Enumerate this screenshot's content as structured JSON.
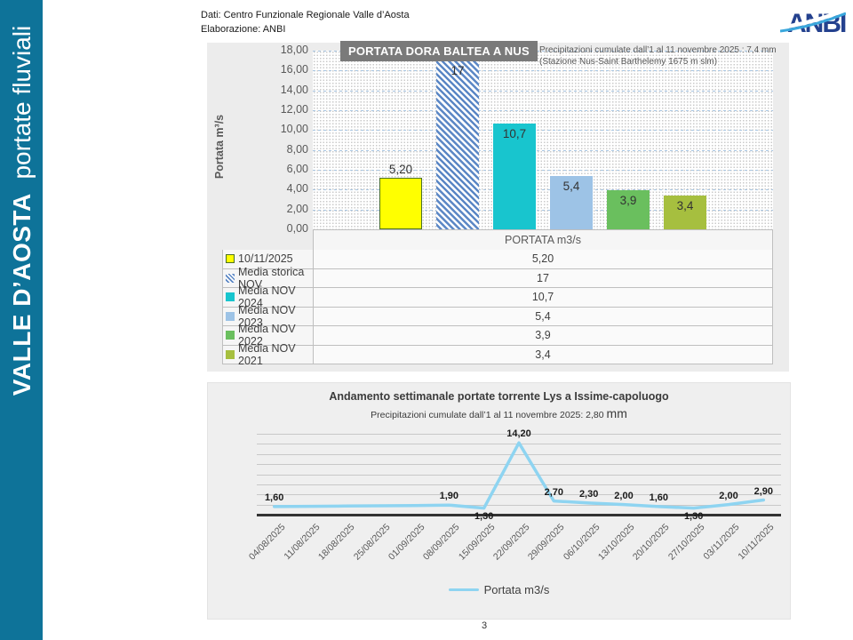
{
  "sidebar": {
    "title_bold": "VALLE D’AOSTA",
    "title_regular": "portate fluviali",
    "bg_color": "#0e7399"
  },
  "header": {
    "line1": "Dati: Centro Funzionale Regionale Valle d’Aosta",
    "line2": "Elaborazione: ANBI"
  },
  "logo": {
    "text": "ANBI",
    "dark_blue": "#24418e",
    "light_blue": "#3aa7dc"
  },
  "footer": {
    "page_number": "3"
  },
  "chart_data": [
    {
      "type": "bar",
      "title": "PORTATA DORA BALTEA A NUS",
      "note_line1": "Precipitazioni cumulate dall’1 al 11 novembre 2025 : 7,4 mm",
      "note_line2": "(Stazione Nus-Saint Barthelemy 1675 m slm)",
      "ylabel": "Portata m³/s",
      "ylim": [
        0,
        18
      ],
      "ytick_step": 2,
      "yticks": [
        "18,00",
        "16,00",
        "14,00",
        "12,00",
        "10,00",
        "8,00",
        "6,00",
        "4,00",
        "2,00",
        "0,00"
      ],
      "categories": [
        "PORTATA m3/s"
      ],
      "category_header": "PORTATA m3/s",
      "grid": true,
      "legend_position": "table-below",
      "gridline_color": "#a9c6e2",
      "series": [
        {
          "name": "10/11/2025",
          "value": 5.2,
          "label": "5,20",
          "color": "#ffff00",
          "border": "#4a7028",
          "pattern": "solid"
        },
        {
          "name": "Media storica NOV",
          "value": 17,
          "label": "17",
          "color": "#5b87c5",
          "pattern": "diagonal-stripes"
        },
        {
          "name": "Media NOV 2024",
          "value": 10.7,
          "label": "10,7",
          "color": "#18c5ce",
          "pattern": "solid"
        },
        {
          "name": "Media NOV 2023",
          "value": 5.4,
          "label": "5,4",
          "color": "#9dc3e6",
          "pattern": "solid"
        },
        {
          "name": "Media NOV 2022",
          "value": 3.9,
          "label": "3,9",
          "color": "#6abf5e",
          "pattern": "solid"
        },
        {
          "name": "Media NOV 2021",
          "value": 3.4,
          "label": "3,4",
          "color": "#a6bf3f",
          "pattern": "solid"
        }
      ]
    },
    {
      "type": "line",
      "title": "Andamento settimanale portate torrente Lys a Issime-capoluogo",
      "subtitle": "Precipitazioni cumulate dall’1 al 11 novembre 2025: 2,80",
      "subtitle_unit": "mm",
      "x": [
        "04/08/2025",
        "11/08/2025",
        "18/08/2025",
        "25/08/2025",
        "01/09/2025",
        "08/09/2025",
        "15/09/2025",
        "22/09/2025",
        "29/09/2025",
        "06/10/2025",
        "13/10/2025",
        "20/10/2025",
        "27/10/2025",
        "03/11/2025",
        "10/11/2025"
      ],
      "values": [
        1.6,
        1.65,
        1.7,
        1.75,
        1.8,
        1.9,
        1.3,
        14.2,
        2.7,
        2.3,
        2.0,
        1.6,
        1.3,
        2.0,
        2.9
      ],
      "point_labels": [
        "1,60",
        "",
        "",
        "",
        "",
        "1,90",
        "1,30",
        "14,20",
        "2,70",
        "2,30",
        "2,00",
        "1,60",
        "1,30",
        "2,00",
        "2,90"
      ],
      "ylim": [
        0,
        16
      ],
      "grid": true,
      "line_color": "#8ed4f1",
      "legend": "Portata m3/s",
      "legend_position": "bottom"
    }
  ]
}
